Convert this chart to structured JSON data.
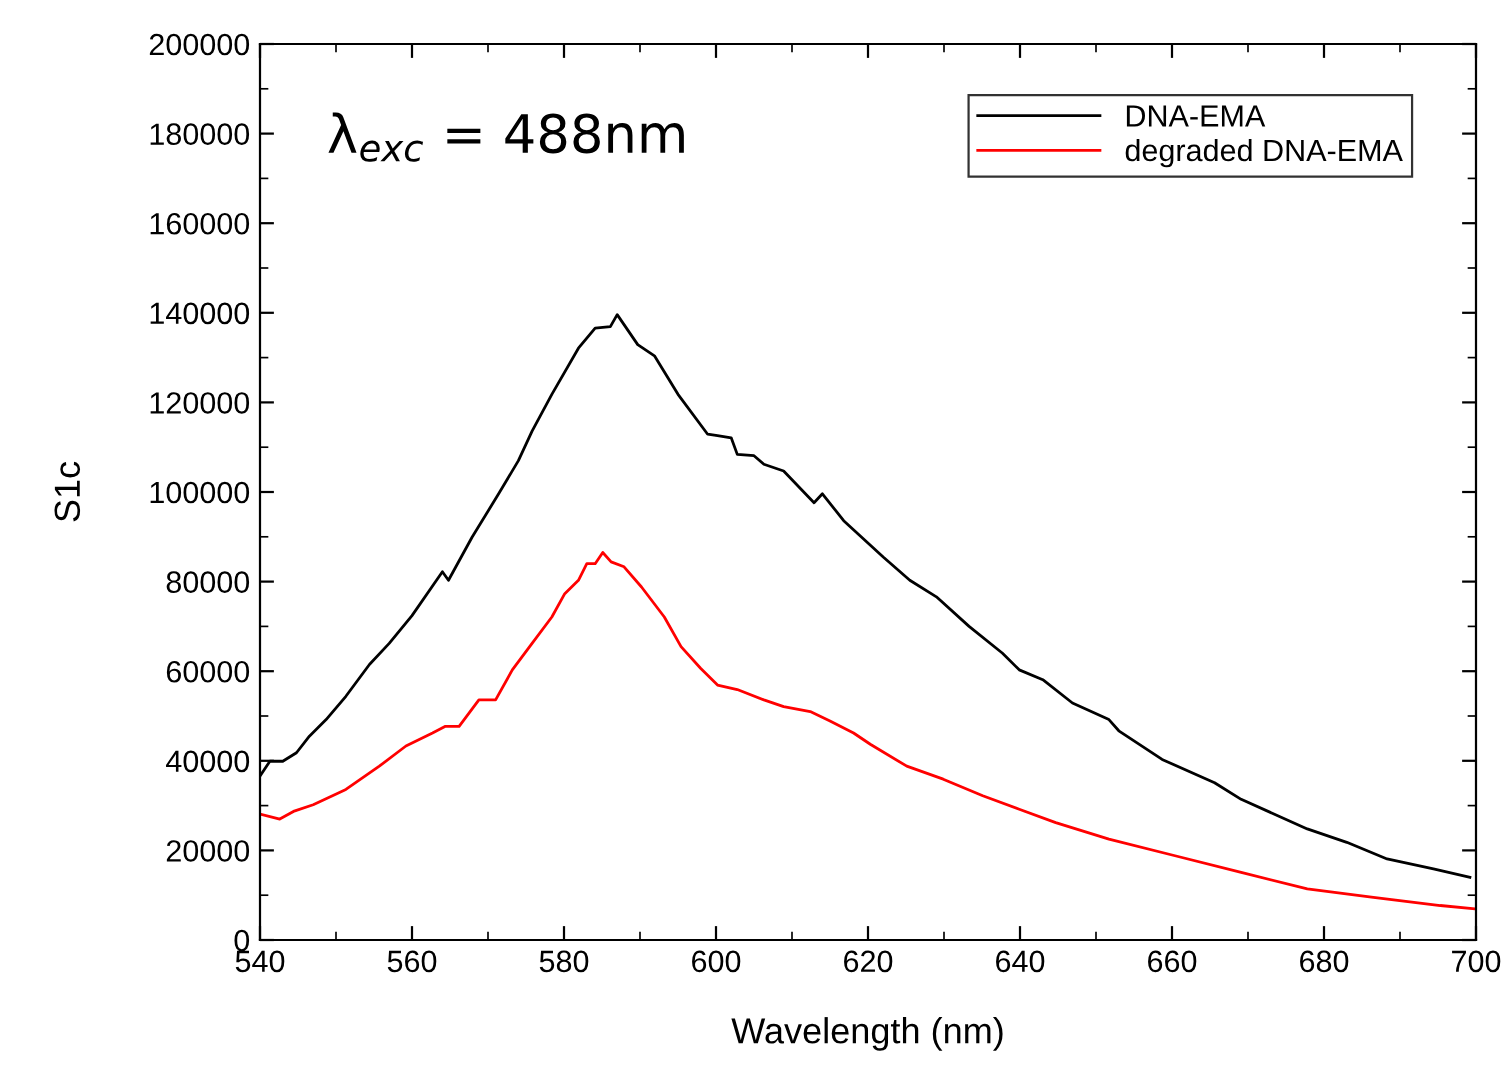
{
  "chart_data": {
    "type": "line",
    "xlabel": "Wavelength (nm)",
    "ylabel": "S1c",
    "xlim": [
      540,
      700
    ],
    "xticks": [
      540,
      560,
      580,
      600,
      620,
      640,
      660,
      680,
      700
    ],
    "ylim": [
      0,
      200000
    ],
    "yticks": [
      0,
      20000,
      40000,
      60000,
      80000,
      100000,
      120000,
      140000,
      160000,
      180000,
      200000
    ],
    "grid": false,
    "legend": "top right",
    "marker": "none",
    "line_style": "solid",
    "annotations": [
      "λ$_{exc}$ = 488nm"
    ],
    "series": [
      {
        "name": "DNA-EMA",
        "color": "#000000",
        "x": [
          540,
          541.3,
          543,
          544.8,
          546.5,
          548.7,
          551.3,
          554.4,
          557,
          560,
          564,
          564.8,
          567.9,
          571.4,
          574,
          575.8,
          578.4,
          581.9,
          584.1,
          586.1,
          587,
          589.7,
          591.9,
          595,
          598.9,
          600.2,
          602,
          602.8,
          605,
          606.3,
          608.9,
          612.9,
          614,
          616.8,
          622,
          625.5,
          629,
          633.3,
          637.7,
          639.9,
          643,
          646.9,
          651.7,
          653,
          658.7,
          665.6,
          669.1,
          677.8,
          683,
          688.3,
          694.4,
          699.2
        ],
        "values": [
          36600,
          39900,
          39900,
          41800,
          45500,
          49200,
          54400,
          61500,
          66200,
          72400,
          82200,
          80300,
          89900,
          99600,
          107000,
          113600,
          121800,
          132100,
          136600,
          136900,
          139600,
          132900,
          130400,
          121800,
          112900,
          112600,
          112100,
          108400,
          108100,
          106200,
          104700,
          97600,
          99600,
          93600,
          85500,
          80300,
          76600,
          70000,
          64000,
          60300,
          58100,
          52900,
          49200,
          46700,
          40300,
          35100,
          31400,
          24800,
          21800,
          18100,
          15900,
          14000
        ]
      },
      {
        "name": "degraded DNA-EMA",
        "color": "#ff0000",
        "x": [
          540,
          542.6,
          544.4,
          547,
          551.3,
          555.7,
          559.2,
          562.7,
          564.4,
          566.2,
          568.8,
          571,
          573.2,
          575.8,
          578.4,
          580.1,
          581.9,
          583,
          584.1,
          585.1,
          586.2,
          587.9,
          590.2,
          593.2,
          595.4,
          598,
          600.2,
          602.8,
          606.3,
          608.9,
          612.4,
          615,
          618.1,
          620.3,
          625.1,
          629.9,
          635.1,
          639.9,
          644.7,
          651.7,
          660.4,
          669.1,
          677.8,
          686.5,
          695.3,
          699.7
        ],
        "values": [
          28100,
          27000,
          28700,
          30200,
          33600,
          38800,
          43300,
          46200,
          47700,
          47700,
          53600,
          53600,
          60300,
          66200,
          72100,
          77300,
          80300,
          84000,
          84000,
          86500,
          84400,
          83300,
          78800,
          72100,
          65500,
          60600,
          56900,
          55900,
          53600,
          52100,
          51000,
          48900,
          46200,
          43700,
          38800,
          35900,
          32200,
          29200,
          26200,
          22500,
          18800,
          15100,
          11400,
          9500,
          7700,
          7000
        ]
      }
    ]
  }
}
